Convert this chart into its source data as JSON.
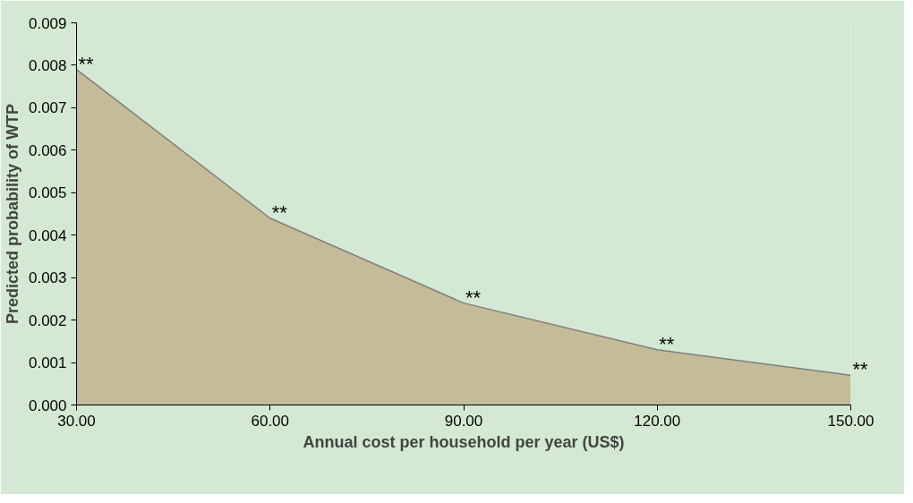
{
  "chart_data": {
    "type": "area",
    "xlabel": "Annual cost per household per year (US$)",
    "ylabel": "Predicted probability of WTP",
    "x": [
      30,
      60,
      90,
      120,
      150
    ],
    "series": [
      {
        "color": "#c4bb98",
        "values": [
          0.0079,
          0.0044,
          0.0024,
          0.0013,
          0.0007
        ]
      }
    ],
    "xlim": [
      30,
      150
    ],
    "xticks": [
      {
        "value": 30,
        "label": "30.00"
      },
      {
        "value": 60,
        "label": "60.00"
      },
      {
        "value": 90,
        "label": "90.00"
      },
      {
        "value": 120,
        "label": "120.00"
      },
      {
        "value": 150,
        "label": "150.00"
      }
    ],
    "ylim": [
      0,
      0.009
    ],
    "yticks": [
      {
        "value": 0,
        "label": "0.000"
      },
      {
        "value": 0.001,
        "label": "0.001"
      },
      {
        "value": 0.002,
        "label": "0.002"
      },
      {
        "value": 0.003,
        "label": "0.003"
      },
      {
        "value": 0.004,
        "label": "0.004"
      },
      {
        "value": 0.005,
        "label": "0.005"
      },
      {
        "value": 0.006,
        "label": "0.006"
      },
      {
        "value": 0.007,
        "label": "0.007"
      },
      {
        "value": 0.008,
        "label": "0.008"
      },
      {
        "value": 0.009,
        "label": "0.009"
      }
    ],
    "annotations": [
      {
        "text": "**",
        "x": 30,
        "y": 0.0079
      },
      {
        "text": "**",
        "x": 60,
        "y": 0.0044
      },
      {
        "text": "**",
        "x": 90,
        "y": 0.0024
      },
      {
        "text": "**",
        "x": 120,
        "y": 0.0013
      },
      {
        "text": "**",
        "x": 150,
        "y": 0.0007
      }
    ],
    "grid": false
  }
}
